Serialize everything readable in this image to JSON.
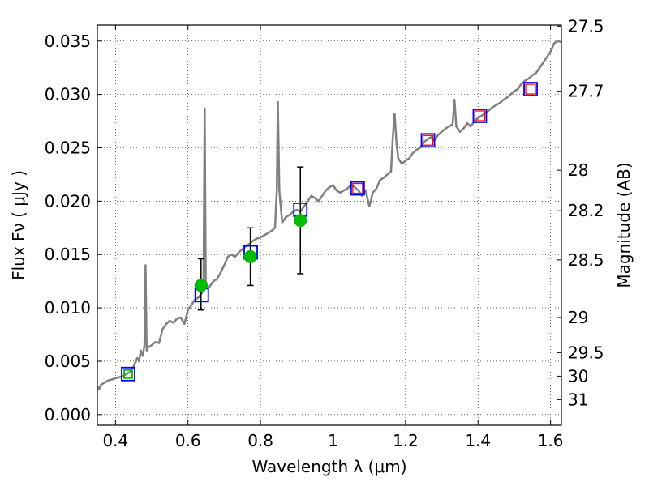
{
  "chart_data": {
    "type": "scatter",
    "xlabel": "Wavelength  λ (μm)",
    "ylabel": "Flux  Fν  ( μJy )",
    "y2label": "Magnitude (AB)",
    "xlim": [
      0.35,
      1.63
    ],
    "ylim": [
      -0.001,
      0.0365
    ],
    "x_ticks": [
      0.4,
      0.6,
      0.8,
      1.0,
      1.2,
      1.4,
      1.6
    ],
    "x_tick_labels": [
      "0.4",
      "0.6",
      "0.8",
      "1",
      "1.2",
      "1.4",
      "1.6"
    ],
    "y_ticks": [
      0.0,
      0.005,
      0.01,
      0.015,
      0.02,
      0.025,
      0.03,
      0.035
    ],
    "y_tick_labels": [
      "0.000",
      "0.005",
      "0.010",
      "0.015",
      "0.020",
      "0.025",
      "0.030",
      "0.035"
    ],
    "y2_ticks": [
      {
        "label": "27.5",
        "flux": 0.0364
      },
      {
        "label": "27.7",
        "flux": 0.0303
      },
      {
        "label": "28",
        "flux": 0.0229
      },
      {
        "label": "28.2",
        "flux": 0.0191
      },
      {
        "label": "28.5",
        "flux": 0.0145
      },
      {
        "label": "29",
        "flux": 0.0091
      },
      {
        "label": "29.5",
        "flux": 0.0058
      },
      {
        "label": "30",
        "flux": 0.0036
      },
      {
        "label": "31",
        "flux": 0.0014
      }
    ],
    "grid": true,
    "spectrum": {
      "color": "#808080",
      "points": [
        [
          0.35,
          0.0026
        ],
        [
          0.355,
          0.0024
        ],
        [
          0.36,
          0.0028
        ],
        [
          0.37,
          0.003
        ],
        [
          0.38,
          0.0032
        ],
        [
          0.39,
          0.0033
        ],
        [
          0.4,
          0.0034
        ],
        [
          0.41,
          0.0035
        ],
        [
          0.42,
          0.0036
        ],
        [
          0.43,
          0.0038
        ],
        [
          0.44,
          0.004
        ],
        [
          0.45,
          0.0045
        ],
        [
          0.46,
          0.0053
        ],
        [
          0.465,
          0.005
        ],
        [
          0.47,
          0.006
        ],
        [
          0.475,
          0.0055
        ],
        [
          0.48,
          0.0065
        ],
        [
          0.483,
          0.014
        ],
        [
          0.486,
          0.006
        ],
        [
          0.49,
          0.0063
        ],
        [
          0.5,
          0.0065
        ],
        [
          0.51,
          0.0068
        ],
        [
          0.52,
          0.0067
        ],
        [
          0.53,
          0.008
        ],
        [
          0.54,
          0.0085
        ],
        [
          0.55,
          0.0088
        ],
        [
          0.56,
          0.0086
        ],
        [
          0.57,
          0.009
        ],
        [
          0.58,
          0.0091
        ],
        [
          0.59,
          0.0085
        ],
        [
          0.6,
          0.0098
        ],
        [
          0.61,
          0.0103
        ],
        [
          0.62,
          0.0108
        ],
        [
          0.63,
          0.011
        ],
        [
          0.64,
          0.0115
        ],
        [
          0.643,
          0.0125
        ],
        [
          0.646,
          0.0287
        ],
        [
          0.649,
          0.0125
        ],
        [
          0.655,
          0.0118
        ],
        [
          0.66,
          0.012
        ],
        [
          0.67,
          0.0125
        ],
        [
          0.68,
          0.0127
        ],
        [
          0.69,
          0.0133
        ],
        [
          0.7,
          0.014
        ],
        [
          0.71,
          0.0148
        ],
        [
          0.72,
          0.015
        ],
        [
          0.73,
          0.0148
        ],
        [
          0.74,
          0.0152
        ],
        [
          0.75,
          0.0155
        ],
        [
          0.76,
          0.0158
        ],
        [
          0.77,
          0.016
        ],
        [
          0.78,
          0.0163
        ],
        [
          0.79,
          0.0165
        ],
        [
          0.8,
          0.0166
        ],
        [
          0.81,
          0.0168
        ],
        [
          0.82,
          0.017
        ],
        [
          0.83,
          0.0172
        ],
        [
          0.84,
          0.0175
        ],
        [
          0.845,
          0.021
        ],
        [
          0.848,
          0.0293
        ],
        [
          0.852,
          0.021
        ],
        [
          0.86,
          0.018
        ],
        [
          0.87,
          0.0185
        ],
        [
          0.88,
          0.0187
        ],
        [
          0.89,
          0.019
        ],
        [
          0.9,
          0.0192
        ],
        [
          0.91,
          0.019
        ],
        [
          0.92,
          0.0195
        ],
        [
          0.93,
          0.02
        ],
        [
          0.94,
          0.0205
        ],
        [
          0.95,
          0.0203
        ],
        [
          0.96,
          0.02
        ],
        [
          0.97,
          0.0205
        ],
        [
          0.98,
          0.021
        ],
        [
          0.99,
          0.0213
        ],
        [
          1.0,
          0.0215
        ],
        [
          1.01,
          0.021
        ],
        [
          1.02,
          0.0208
        ],
        [
          1.03,
          0.021
        ],
        [
          1.04,
          0.0212
        ],
        [
          1.05,
          0.0215
        ],
        [
          1.06,
          0.0213
        ],
        [
          1.07,
          0.021
        ],
        [
          1.08,
          0.0205
        ],
        [
          1.09,
          0.021
        ],
        [
          1.1,
          0.0195
        ],
        [
          1.11,
          0.0208
        ],
        [
          1.12,
          0.0212
        ],
        [
          1.13,
          0.022
        ],
        [
          1.14,
          0.0222
        ],
        [
          1.15,
          0.0225
        ],
        [
          1.16,
          0.0228
        ],
        [
          1.165,
          0.026
        ],
        [
          1.17,
          0.0282
        ],
        [
          1.175,
          0.0255
        ],
        [
          1.18,
          0.024
        ],
        [
          1.19,
          0.0235
        ],
        [
          1.2,
          0.0238
        ],
        [
          1.21,
          0.024
        ],
        [
          1.22,
          0.0245
        ],
        [
          1.23,
          0.0248
        ],
        [
          1.24,
          0.025
        ],
        [
          1.25,
          0.0255
        ],
        [
          1.26,
          0.0258
        ],
        [
          1.27,
          0.026
        ],
        [
          1.28,
          0.0257
        ],
        [
          1.29,
          0.0262
        ],
        [
          1.3,
          0.0265
        ],
        [
          1.31,
          0.0268
        ],
        [
          1.32,
          0.027
        ],
        [
          1.33,
          0.0272
        ],
        [
          1.335,
          0.0295
        ],
        [
          1.34,
          0.027
        ],
        [
          1.35,
          0.0265
        ],
        [
          1.36,
          0.0268
        ],
        [
          1.37,
          0.0273
        ],
        [
          1.38,
          0.027
        ],
        [
          1.39,
          0.0275
        ],
        [
          1.4,
          0.0278
        ],
        [
          1.41,
          0.028
        ],
        [
          1.42,
          0.0283
        ],
        [
          1.43,
          0.0285
        ],
        [
          1.44,
          0.0288
        ],
        [
          1.45,
          0.029
        ],
        [
          1.46,
          0.0292
        ],
        [
          1.47,
          0.0295
        ],
        [
          1.48,
          0.0297
        ],
        [
          1.49,
          0.03
        ],
        [
          1.5,
          0.0303
        ],
        [
          1.51,
          0.0305
        ],
        [
          1.52,
          0.031
        ],
        [
          1.53,
          0.0313
        ],
        [
          1.54,
          0.0315
        ],
        [
          1.55,
          0.0318
        ],
        [
          1.56,
          0.032
        ],
        [
          1.57,
          0.0325
        ],
        [
          1.58,
          0.033
        ],
        [
          1.59,
          0.0335
        ],
        [
          1.6,
          0.034
        ],
        [
          1.61,
          0.0348
        ],
        [
          1.62,
          0.035
        ],
        [
          1.63,
          0.0349
        ]
      ]
    },
    "model_points": [
      {
        "x": 0.435,
        "y": 0.0038,
        "blue": true,
        "red": false,
        "green": true
      },
      {
        "x": 0.638,
        "y": 0.0112,
        "blue": true,
        "red": false,
        "green": false
      },
      {
        "x": 0.773,
        "y": 0.0152,
        "blue": true,
        "red": false,
        "green": false
      },
      {
        "x": 0.91,
        "y": 0.0192,
        "blue": true,
        "red": false,
        "green": false
      },
      {
        "x": 1.068,
        "y": 0.0212,
        "blue": true,
        "red": true,
        "green": false
      },
      {
        "x": 1.262,
        "y": 0.0257,
        "blue": true,
        "red": true,
        "green": false
      },
      {
        "x": 1.405,
        "y": 0.028,
        "blue": true,
        "red": true,
        "green": false
      },
      {
        "x": 1.545,
        "y": 0.0305,
        "blue": true,
        "red": true,
        "green": false
      }
    ],
    "observed_points": [
      {
        "x": 0.636,
        "y": 0.0121,
        "err_low": 0.0023,
        "err_high": 0.0025
      },
      {
        "x": 0.772,
        "y": 0.0148,
        "err_low": 0.0027,
        "err_high": 0.0027
      },
      {
        "x": 0.91,
        "y": 0.0182,
        "err_low": 0.005,
        "err_high": 0.005
      }
    ],
    "colors": {
      "spectrum": "#808080",
      "model_blue": "#0000ff",
      "model_red": "#ff0000",
      "observed": "#00bb00",
      "errorbar": "#000000"
    }
  }
}
